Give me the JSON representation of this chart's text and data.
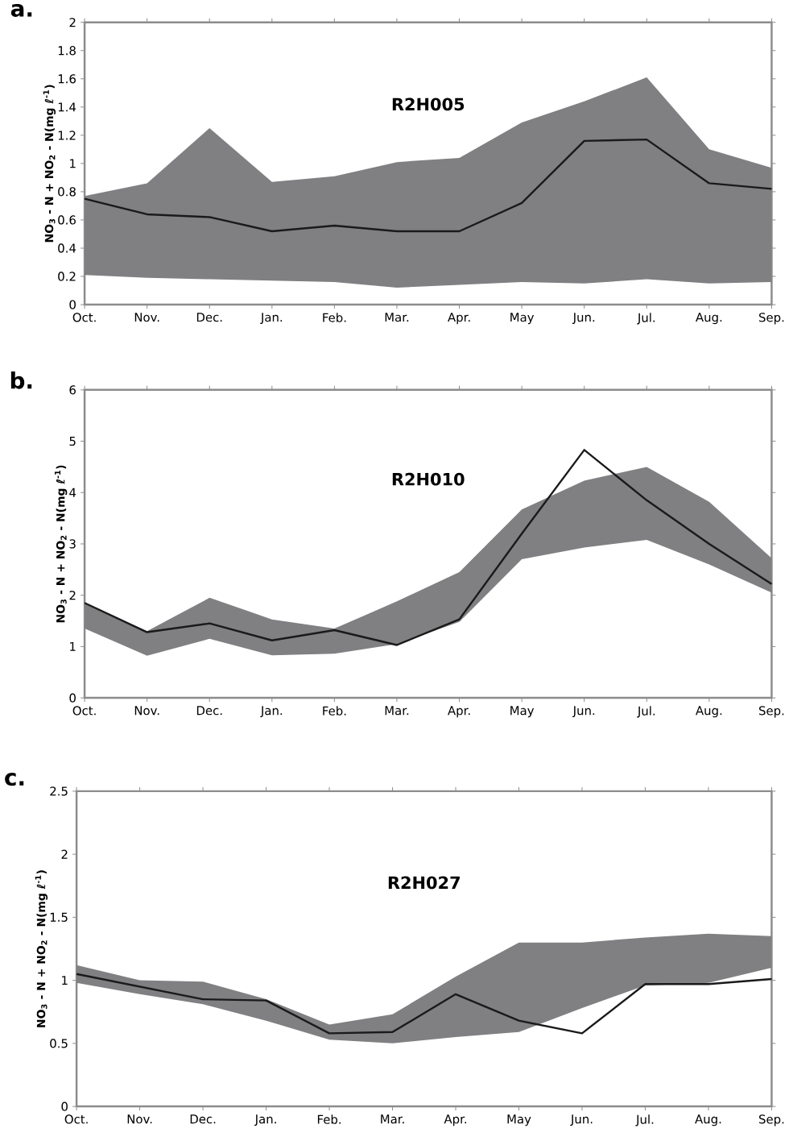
{
  "chart_data": [
    {
      "type": "line",
      "title": "a.",
      "annotations": [
        "R2H005"
      ],
      "ylabel": "NO$_{3}$ - N + NO$_{2}$ - N(mg ℓ$^{-1}$)",
      "categories": [
        "Oct.",
        "Nov.",
        "Dec.",
        "Jan.",
        "Feb.",
        "Mar.",
        "Apr.",
        "May",
        "Jun.",
        "Jul.",
        "Aug.",
        "Sep."
      ],
      "ylim": [
        0,
        2
      ],
      "yticks": [
        0,
        0.2,
        0.4,
        0.6,
        0.8,
        1,
        1.2,
        1.4,
        1.6,
        1.8,
        2
      ],
      "grid": false,
      "marker": "none",
      "line_style": "solid",
      "series": [
        {
          "color": "#1a1a1a",
          "values": [
            0.75,
            0.64,
            0.62,
            0.52,
            0.56,
            0.52,
            0.52,
            0.72,
            1.16,
            1.17,
            0.86,
            0.82
          ],
          "lower": [
            0.21,
            0.19,
            0.18,
            0.17,
            0.16,
            0.12,
            0.14,
            0.16,
            0.15,
            0.18,
            0.15,
            0.16
          ],
          "upper": [
            0.77,
            0.86,
            1.25,
            0.87,
            0.91,
            1.01,
            1.04,
            1.29,
            1.44,
            1.61,
            1.1,
            0.97
          ]
        }
      ]
    },
    {
      "type": "line",
      "title": "b.",
      "annotations": [
        "R2H010"
      ],
      "ylabel": "NO$_{3}$ - N + NO$_{2}$ - N(mg ℓ$^{-1}$)",
      "categories": [
        "Oct.",
        "Nov.",
        "Dec.",
        "Jan.",
        "Feb.",
        "Mar.",
        "Apr.",
        "May",
        "Jun.",
        "Jul.",
        "Aug.",
        "Sep."
      ],
      "ylim": [
        0,
        6
      ],
      "yticks": [
        0,
        1,
        2,
        3,
        4,
        5,
        6
      ],
      "grid": false,
      "marker": "none",
      "line_style": "solid",
      "series": [
        {
          "color": "#1a1a1a",
          "values": [
            1.85,
            1.28,
            1.45,
            1.12,
            1.32,
            1.03,
            1.53,
            3.2,
            4.83,
            3.85,
            3.0,
            2.22
          ],
          "lower": [
            1.35,
            0.82,
            1.15,
            0.83,
            0.86,
            1.05,
            1.48,
            2.7,
            2.93,
            3.08,
            2.6,
            2.05
          ],
          "upper": [
            1.85,
            1.3,
            1.95,
            1.53,
            1.35,
            1.88,
            2.45,
            3.67,
            4.23,
            4.5,
            3.82,
            2.72
          ]
        }
      ]
    },
    {
      "type": "line",
      "title": "c.",
      "annotations": [
        "R2H027"
      ],
      "ylabel": "NO$_{3}$ - N + NO$_{2}$ - N(mg ℓ$^{-1}$)",
      "categories": [
        "Oct.",
        "Nov.",
        "Dec.",
        "Jan.",
        "Feb.",
        "Mar.",
        "Apr.",
        "May",
        "Jun.",
        "Jul.",
        "Aug.",
        "Sep."
      ],
      "ylim": [
        0,
        2.5
      ],
      "yticks": [
        0,
        0.5,
        1,
        1.5,
        2,
        2.5
      ],
      "grid": false,
      "marker": "none",
      "line_style": "solid",
      "series": [
        {
          "color": "#1a1a1a",
          "values": [
            1.05,
            0.95,
            0.85,
            0.84,
            0.58,
            0.59,
            0.89,
            0.68,
            0.58,
            0.97,
            0.97,
            1.01
          ],
          "lower": [
            0.98,
            0.89,
            0.81,
            0.68,
            0.53,
            0.5,
            0.55,
            0.59,
            0.78,
            0.96,
            0.98,
            1.1
          ],
          "upper": [
            1.12,
            1.0,
            0.99,
            0.85,
            0.65,
            0.73,
            1.03,
            1.3,
            1.3,
            1.34,
            1.37,
            1.35
          ]
        }
      ]
    }
  ]
}
